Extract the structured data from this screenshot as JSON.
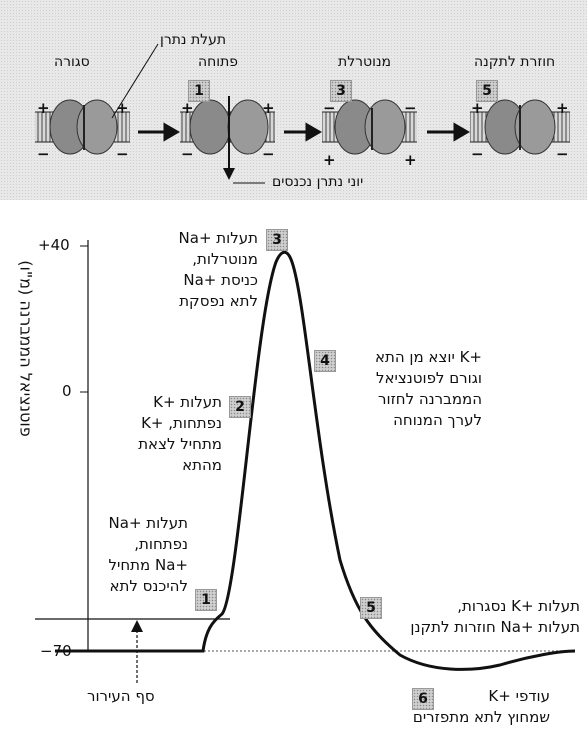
{
  "top": {
    "channel_label": "תעלת נתרן",
    "ions_label": "יוני נתרן נכנסים",
    "stages": [
      {
        "label": "סגורה",
        "num": ""
      },
      {
        "label": "פתוחה",
        "num": "1"
      },
      {
        "label": "מנוטרלת",
        "num": "3"
      },
      {
        "label": "חוזרת לתקנה",
        "num": "5"
      }
    ],
    "plus": "+",
    "minus": "−"
  },
  "graph": {
    "ylabel": "פוטנציאל הממברנה (מ\"ו)",
    "ticks": [
      "+40",
      "0",
      "−70"
    ],
    "threshold_label": "סף העירור",
    "annotations": [
      {
        "num": "1",
        "lines": [
          "תעלות +Na",
          "נפתחות,",
          "+Na מתחיל",
          "להיכנס לתא"
        ]
      },
      {
        "num": "2",
        "lines": [
          "תעלות +K",
          "נפתחות, +K",
          "מתחיל לצאת",
          "מהתא"
        ]
      },
      {
        "num": "3",
        "lines": [
          "תעלות +Na",
          "מנוטרלות,",
          "כניסת +Na",
          "לתא נפסקת"
        ]
      },
      {
        "num": "4",
        "lines": [
          "+K יוצא מן התא",
          "וגורם לפוטנציאל",
          "הממברנה לחזור",
          "לערך המנוחה"
        ]
      },
      {
        "num": "5",
        "lines": [
          "תעלות +K נסגרות,",
          "תעלות +Na חוזרות לתקנן"
        ]
      },
      {
        "num": "6",
        "lines": [
          "עודפי +K",
          "שמחוץ לתא מתפזרים"
        ]
      }
    ]
  },
  "colors": {
    "panel": "#e8e8e8",
    "numbox": "#cfcfcf",
    "line": "#111111"
  }
}
